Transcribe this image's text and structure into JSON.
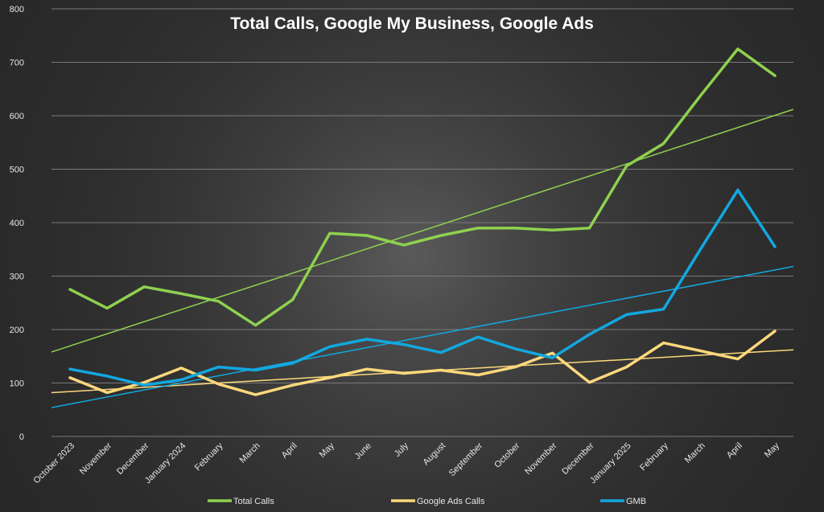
{
  "chart_data": {
    "type": "line",
    "title": "Total Calls, Google My Business, Google Ads",
    "xlabel": "",
    "ylabel": "",
    "ylim": [
      0,
      800
    ],
    "yticks": [
      0,
      100,
      200,
      300,
      400,
      500,
      600,
      700,
      800
    ],
    "grid": true,
    "legend": "bottom",
    "categories": [
      "October 2023",
      "November",
      "December",
      "January 2024",
      "February",
      "March",
      "April",
      "May",
      "June",
      "July",
      "August",
      "September",
      "October",
      "November",
      "December",
      "January 2025",
      "February",
      "March",
      "April",
      "May"
    ],
    "series": [
      {
        "name": "Total Calls",
        "color": "#8fd14f",
        "values": [
          275,
          240,
          280,
          267,
          253,
          208,
          256,
          380,
          376,
          358,
          376,
          390,
          390,
          386,
          390,
          506,
          548,
          638,
          725,
          675
        ],
        "trend": [
          158,
          612
        ]
      },
      {
        "name": "Google Ads Calls",
        "color": "#fdd87c",
        "values": [
          110,
          82,
          101,
          128,
          98,
          78,
          96,
          110,
          126,
          118,
          124,
          115,
          130,
          156,
          101,
          130,
          175,
          160,
          145,
          197
        ],
        "trend": [
          82,
          162
        ]
      },
      {
        "name": "GMB",
        "color": "#12a8e0",
        "values": [
          126,
          113,
          96,
          106,
          130,
          124,
          137,
          168,
          182,
          172,
          157,
          186,
          164,
          147,
          191,
          228,
          238,
          351,
          461,
          355
        ],
        "trend": [
          54,
          318
        ]
      }
    ]
  }
}
